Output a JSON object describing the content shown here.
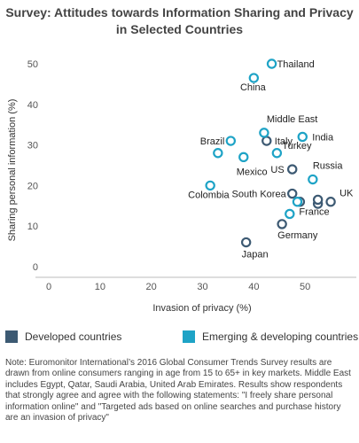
{
  "chart_data": {
    "type": "scatter",
    "title": "Survey: Attitudes towards Information Sharing and Privacy in Selected Countries",
    "xlabel": "Invasion of privacy (%)",
    "ylabel": "Sharing personal information (%)",
    "xlim": [
      0,
      60
    ],
    "ylim": [
      0,
      50
    ],
    "xticks": [
      0,
      10,
      20,
      30,
      40,
      50
    ],
    "yticks": [
      0,
      10,
      20,
      30,
      40,
      50
    ],
    "grid": false,
    "legend_position": "bottom",
    "series": [
      {
        "name": "Developed countries",
        "color": "#3d5a73",
        "points": [
          {
            "label": "US",
            "x": 47.5,
            "y": 24
          },
          {
            "label": "Italy",
            "x": 42.5,
            "y": 31
          },
          {
            "label": "South Korea",
            "x": 47.5,
            "y": 18
          },
          {
            "label": "UK",
            "x": 55,
            "y": 16
          },
          {
            "label": "",
            "x": 52.5,
            "y": 15.5
          },
          {
            "label": "",
            "x": 52.5,
            "y": 16.5
          },
          {
            "label": "France",
            "x": 49,
            "y": 16
          },
          {
            "label": "Germany",
            "x": 45.5,
            "y": 10.5
          },
          {
            "label": "Japan",
            "x": 38.5,
            "y": 6
          }
        ]
      },
      {
        "name": "Emerging & developing countries",
        "color": "#1ea3c6",
        "points": [
          {
            "label": "Thailand",
            "x": 43.5,
            "y": 50
          },
          {
            "label": "China",
            "x": 40,
            "y": 46.5
          },
          {
            "label": "Middle East",
            "x": 42,
            "y": 33
          },
          {
            "label": "India",
            "x": 49.5,
            "y": 32
          },
          {
            "label": "Brazil",
            "x": 35.5,
            "y": 31
          },
          {
            "label": "",
            "x": 33,
            "y": 28
          },
          {
            "label": "Mexico",
            "x": 38,
            "y": 27
          },
          {
            "label": "Turkey",
            "x": 44.5,
            "y": 28
          },
          {
            "label": "Russia",
            "x": 51.5,
            "y": 21.5
          },
          {
            "label": "Colombia",
            "x": 31.5,
            "y": 20
          },
          {
            "label": "",
            "x": 48.5,
            "y": 16
          },
          {
            "label": "",
            "x": 47,
            "y": 13
          }
        ]
      }
    ]
  },
  "legend": [
    {
      "label": "Developed countries",
      "color": "#3d5a73"
    },
    {
      "label": "Emerging & developing countries",
      "color": "#1ea3c6"
    }
  ],
  "note": "Note: Euromonitor International’s 2016 Global Consumer Trends Survey results are drawn from online consumers ranging in age from 15 to 65+ in key markets. Middle East includes Egypt, Qatar, Saudi Arabia, United Arab Emirates. Results show respondents that strongly agree and agree with the following statements: \"I freely share personal information online\" and \"Targeted ads based on online searches and purchase history are an invasion of privacy\""
}
